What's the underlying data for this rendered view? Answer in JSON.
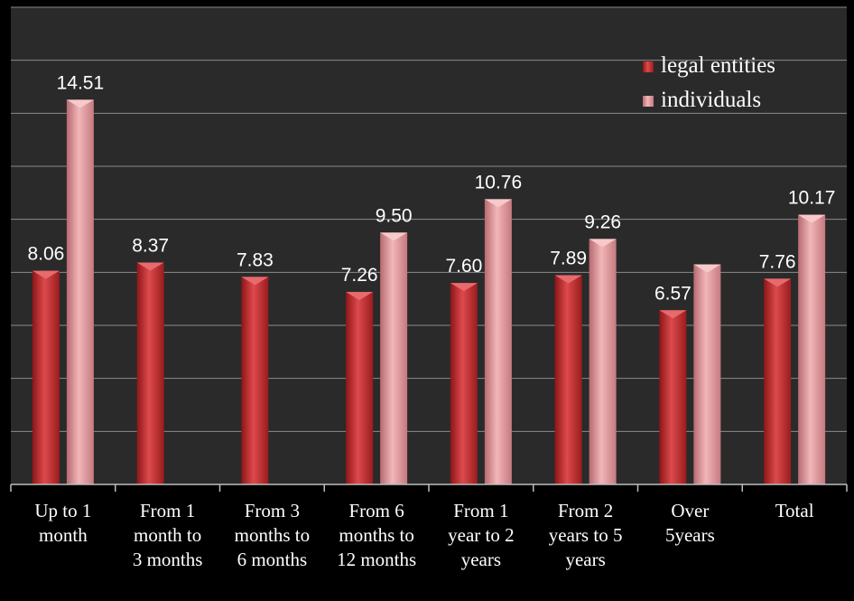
{
  "chart_data": {
    "type": "bar",
    "title": "",
    "xlabel": "",
    "ylabel": "",
    "ylim": [
      0,
      18
    ],
    "grid": true,
    "legend_position": "top-right",
    "categories": [
      [
        "Up to 1",
        "month"
      ],
      [
        "From 1",
        "month to",
        "3 months"
      ],
      [
        "From 3",
        "months to",
        "6 months"
      ],
      [
        "From 6",
        "months to",
        "12 months"
      ],
      [
        "From 1",
        "year to 2",
        "years"
      ],
      [
        "From 2",
        "years to 5",
        "years"
      ],
      [
        "Over",
        "5years"
      ],
      [
        "Total"
      ]
    ],
    "series": [
      {
        "name": "legal entities",
        "color": "#c0282b",
        "values": [
          8.06,
          8.37,
          7.83,
          7.26,
          7.6,
          7.89,
          6.57,
          7.76
        ],
        "labels": [
          "8.06",
          "8.37",
          "7.83",
          "7.26",
          "7.60",
          "7.89",
          "6.57",
          "7.76"
        ]
      },
      {
        "name": "individuals",
        "color": "#dc8e92",
        "values": [
          14.51,
          null,
          null,
          9.5,
          10.76,
          9.26,
          8.3,
          10.17
        ],
        "labels": [
          "14.51",
          null,
          null,
          "9.50",
          "10.76",
          "9.26",
          null,
          "10.17"
        ]
      }
    ]
  }
}
